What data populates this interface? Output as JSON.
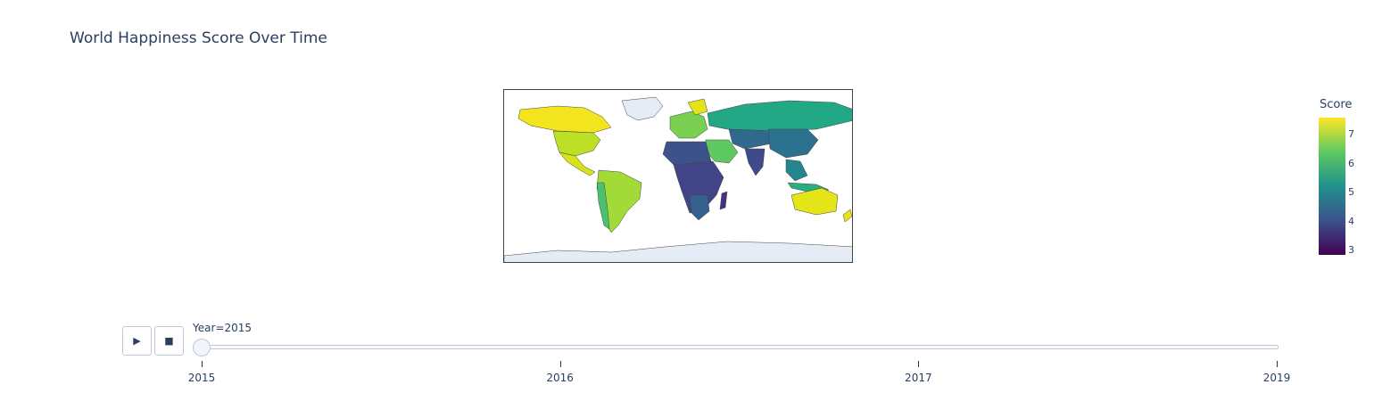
{
  "chart_data": {
    "type": "choropleth",
    "title": "World Happiness Score Over Time",
    "colorbar": {
      "title": "Score",
      "colorscale": "Viridis",
      "ticks": [
        "7",
        "6",
        "5",
        "4",
        "3"
      ],
      "range": [
        3,
        7.5
      ]
    },
    "regions_frame_2015": [
      {
        "region": "Canada",
        "score": 7.4
      },
      {
        "region": "United States",
        "score": 7.1
      },
      {
        "region": "Mexico",
        "score": 7.2
      },
      {
        "region": "Brazil",
        "score": 7.0
      },
      {
        "region": "Argentina",
        "score": 6.6
      },
      {
        "region": "Chile",
        "score": 6.7
      },
      {
        "region": "Northern Europe",
        "score": 7.4
      },
      {
        "region": "Russia",
        "score": 5.7
      },
      {
        "region": "China",
        "score": 5.1
      },
      {
        "region": "India",
        "score": 4.6
      },
      {
        "region": "Saudi Arabia",
        "score": 6.4
      },
      {
        "region": "Africa",
        "score": 4.2
      },
      {
        "region": "Australia",
        "score": 7.3
      },
      {
        "region": "New Zealand",
        "score": 7.3
      },
      {
        "region": "Southeast Asia",
        "score": 5.5
      }
    ]
  },
  "animation": {
    "play_symbol": "▶",
    "stop_symbol": "■",
    "current_label": "Year=2015",
    "steps": [
      "2015",
      "2016",
      "2017",
      "2019"
    ],
    "current_index": 0
  }
}
